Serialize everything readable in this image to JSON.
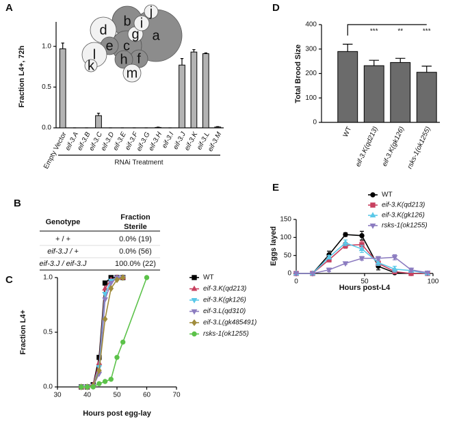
{
  "panel_labels": [
    "A",
    "B",
    "C",
    "D",
    "E"
  ],
  "diagram": {
    "nodes": [
      {
        "label": "a",
        "fill": "#8c8c8c"
      },
      {
        "label": "b",
        "fill": "#8c8c8c"
      },
      {
        "label": "c",
        "fill": "#8c8c8c"
      },
      {
        "label": "d",
        "fill": "#f2f2f2"
      },
      {
        "label": "e",
        "fill": "#8c8c8c"
      },
      {
        "label": "f",
        "fill": "#8c8c8c"
      },
      {
        "label": "h",
        "fill": "#8c8c8c"
      },
      {
        "label": "g",
        "fill": "#f2f2f2"
      },
      {
        "label": "i",
        "fill": "#f2f2f2"
      },
      {
        "label": "j",
        "fill": "#f2f2f2"
      },
      {
        "label": "l",
        "fill": "#f2f2f2"
      },
      {
        "label": "k",
        "fill": "#f2f2f2"
      },
      {
        "label": "m",
        "fill": "#f2f2f2"
      }
    ]
  },
  "table": {
    "columns": [
      [
        "Genotype"
      ],
      [
        "Fraction",
        "Sterile"
      ]
    ],
    "rows": [
      [
        "+ / +",
        "0.0% (19)"
      ],
      [
        "eif-3.J / +",
        "0.0% (56)"
      ],
      [
        "eif-3.J / eif-3.J",
        "100.0% (22)"
      ]
    ]
  },
  "chart_data": [
    {
      "type": "bar",
      "ylabel": "Fraction L4+, 72h",
      "xlabel": "RNAi Treatment",
      "categories": [
        "Empty Vector",
        "eif-3.A",
        "eif-3.B",
        "eif-3.C",
        "eif-3.D",
        "eif-3.E",
        "eif-3.F",
        "eif-3.G",
        "eif-3.H",
        "eif-3.I",
        "eif-3.J",
        "eif-3.K",
        "eif-3.L",
        "eif-3.M"
      ],
      "values": [
        0.97,
        0,
        0,
        0.15,
        0,
        0,
        0,
        0,
        0.005,
        0,
        0.77,
        0.93,
        0.91,
        0.01
      ],
      "errors": [
        0.07,
        0,
        0,
        0.03,
        0,
        0,
        0,
        0,
        0.004,
        0,
        0.08,
        0.03,
        0.01,
        0.005
      ],
      "color": "#b3b3b3",
      "ylim": [
        0,
        1.3
      ],
      "yticks": [
        {
          "value": 0,
          "label": "0.0"
        },
        {
          "value": 0.5,
          "label": "0.5"
        },
        {
          "value": 1,
          "label": "1.0"
        }
      ]
    },
    {
      "type": "bar",
      "ylabel": "Total Brood Size",
      "categories": [
        "WT",
        "eif-3.K(qd213)",
        "eif-3.K(gk126)",
        "rsks-1(ok1255)"
      ],
      "values": [
        290,
        232,
        245,
        205
      ],
      "errors": [
        30,
        22,
        17,
        25
      ],
      "color": "#6b6b6b",
      "ylim": [
        0,
        400
      ],
      "yticks": [
        0,
        100,
        200,
        300,
        400
      ],
      "annotations": [
        "***",
        "**",
        "***"
      ]
    },
    {
      "type": "line",
      "ylabel": "Fraction L4+",
      "xlabel": "Hours post egg-lay",
      "xlim": [
        30,
        70
      ],
      "xticks": [
        30,
        40,
        50,
        60,
        70
      ],
      "ylim": [
        0,
        1
      ],
      "yticks": [
        {
          "value": 0,
          "label": "0.0"
        },
        {
          "value": 0.5,
          "label": "0.5"
        },
        {
          "value": 1,
          "label": "1.0"
        }
      ],
      "series": [
        {
          "name": "WT",
          "color": "#000000",
          "marker": "square",
          "x": [
            38,
            40,
            42,
            44,
            46,
            48,
            50,
            52
          ],
          "values": [
            0,
            0,
            0.02,
            0.27,
            0.95,
            1,
            1,
            1
          ]
        },
        {
          "name": "eif-3.K(qd213)",
          "color": "#c8405f",
          "marker": "triangle",
          "x": [
            38,
            40,
            42,
            44,
            46,
            48,
            50,
            52
          ],
          "values": [
            0,
            0,
            0.02,
            0.22,
            0.9,
            0.98,
            1,
            1
          ]
        },
        {
          "name": "eif-3.K(gk126)",
          "color": "#5ac8e8",
          "marker": "triangle-down",
          "x": [
            38,
            40,
            42,
            44,
            46,
            48,
            50,
            52
          ],
          "values": [
            0,
            0,
            0.01,
            0.18,
            0.85,
            0.97,
            1,
            1
          ]
        },
        {
          "name": "eif-3.L(qd310)",
          "color": "#8c7cc0",
          "marker": "triangle-down",
          "x": [
            38,
            40,
            42,
            44,
            46,
            48,
            50,
            52
          ],
          "values": [
            0,
            0,
            0.01,
            0.12,
            0.8,
            0.95,
            1,
            1
          ]
        },
        {
          "name": "eif-3.L(gk485491)",
          "color": "#a08c3c",
          "marker": "diamond",
          "x": [
            38,
            40,
            42,
            44,
            46,
            48,
            50,
            52
          ],
          "values": [
            0,
            0,
            0.01,
            0.15,
            0.62,
            0.9,
            0.98,
            1
          ]
        },
        {
          "name": "rsks-1(ok1255)",
          "color": "#5cc24a",
          "marker": "circle",
          "x": [
            38,
            40,
            42,
            44,
            46,
            48,
            50,
            52,
            60
          ],
          "values": [
            0,
            0,
            0,
            0.03,
            0.05,
            0.07,
            0.27,
            0.41,
            1
          ]
        }
      ]
    },
    {
      "type": "line",
      "ylabel": "Eggs layed",
      "xlabel": "Hours post-L4",
      "xlim": [
        0,
        100
      ],
      "xticks": [
        0,
        50,
        100
      ],
      "ylim": [
        0,
        150
      ],
      "yticks": [
        0,
        50,
        100,
        150
      ],
      "x": [
        0,
        12,
        24,
        36,
        48,
        60,
        72,
        84,
        96
      ],
      "series": [
        {
          "name": "WT",
          "color": "#000000",
          "marker": "circle",
          "values": [
            0,
            0,
            52,
            108,
            105,
            20,
            2,
            0,
            0
          ],
          "errors": [
            0,
            0,
            10,
            5,
            12,
            10,
            2,
            0,
            0
          ]
        },
        {
          "name": "eif-3.K(qd213)",
          "color": "#c8405f",
          "marker": "square",
          "values": [
            0,
            0,
            38,
            78,
            80,
            28,
            5,
            0,
            0
          ],
          "errors": [
            0,
            0,
            6,
            8,
            10,
            5,
            2,
            0,
            0
          ]
        },
        {
          "name": "eif-3.K(gk126)",
          "color": "#5ac8e8",
          "marker": "triangle",
          "values": [
            0,
            0,
            45,
            85,
            68,
            30,
            12,
            8,
            0
          ],
          "errors": [
            0,
            0,
            5,
            8,
            10,
            8,
            8,
            5,
            0
          ]
        },
        {
          "name": "rsks-1(ok1255)",
          "color": "#8c7cc0",
          "marker": "triangle-down",
          "values": [
            0,
            0,
            10,
            28,
            42,
            42,
            45,
            10,
            2
          ],
          "errors": [
            0,
            0,
            5,
            3,
            5,
            5,
            7,
            5,
            1
          ]
        }
      ]
    }
  ]
}
